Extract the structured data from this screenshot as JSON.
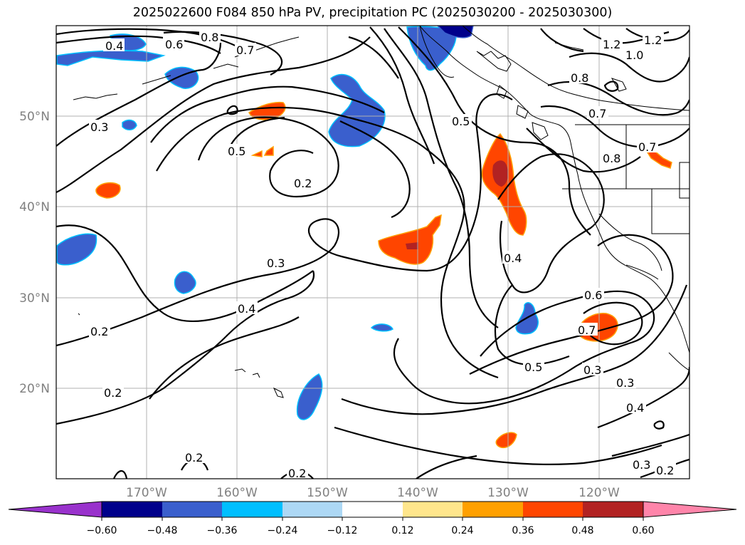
{
  "title": "2025022600 F084 850 hPa PV, precipitation PC (2025030200 - 2025030300)",
  "map": {
    "lon_ticks": [
      "170°W",
      "160°W",
      "150°W",
      "140°W",
      "130°W",
      "120°W"
    ],
    "lat_ticks": [
      "50°N",
      "40°N",
      "30°N",
      "20°N"
    ],
    "colors": {
      "grid": "#b0b0b0",
      "contour": "#000000",
      "coast": "#000000",
      "tick_label": "#808080"
    },
    "contour_labels": [
      "0.4",
      "0.6",
      "0.8",
      "0.7",
      "1.2",
      "1.2",
      "1.0",
      "0.8",
      "0.7",
      "0.8",
      "0.7",
      "0.3",
      "0.5",
      "0.2",
      "0.5",
      "0.3",
      "0.4",
      "0.4",
      "0.2",
      "0.6",
      "0.7",
      "0.5",
      "0.3",
      "0.3",
      "0.2",
      "0.4",
      "0.2",
      "0.3",
      "0.2",
      "0.2"
    ]
  },
  "colorbar": {
    "ticks": [
      "−0.60",
      "−0.48",
      "−0.36",
      "−0.24",
      "−0.12",
      "0.12",
      "0.24",
      "0.36",
      "0.48",
      "0.60"
    ],
    "colors": [
      "#9932cc",
      "#00008b",
      "#3a5fcd",
      "#00bfff",
      "#add8f5",
      "#ffffff",
      "#ffe68c",
      "#ffa000",
      "#ff4500",
      "#b22222",
      "#ff85aa"
    ]
  }
}
